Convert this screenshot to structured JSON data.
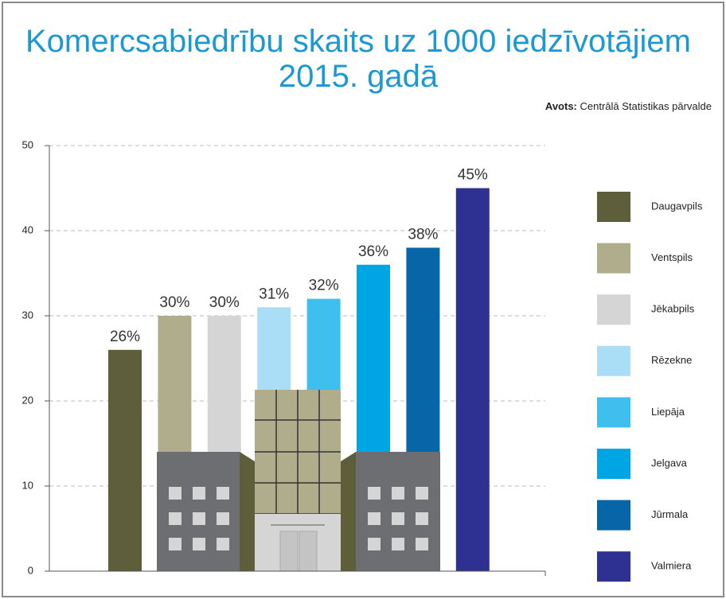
{
  "chart_data": {
    "type": "bar",
    "title": "Komercsabiedrību skaits uz 1000 iedzīvotājiem 2015. gadā",
    "source_label": "Avots:",
    "source": "Centrālā Statistikas pārvalde",
    "categories": [
      "Daugavpils",
      "Ventspils",
      "Jēkabpils",
      "Rēzekne",
      "Liepāja",
      "Jelgava",
      "Jūrmala",
      "Valmiera"
    ],
    "values": [
      26,
      30,
      30,
      31,
      32,
      36,
      38,
      45
    ],
    "value_labels": [
      "26%",
      "30%",
      "30%",
      "31%",
      "32%",
      "36%",
      "38%",
      "45%"
    ],
    "colors": [
      "#5e5e3a",
      "#b0ad8c",
      "#d5d5d5",
      "#a9def6",
      "#3fbfee",
      "#00a6e4",
      "#0766a8",
      "#2e3192"
    ],
    "ylim": [
      0,
      50
    ],
    "yticks": [
      0,
      10,
      20,
      30,
      40,
      50
    ],
    "grid": true
  }
}
